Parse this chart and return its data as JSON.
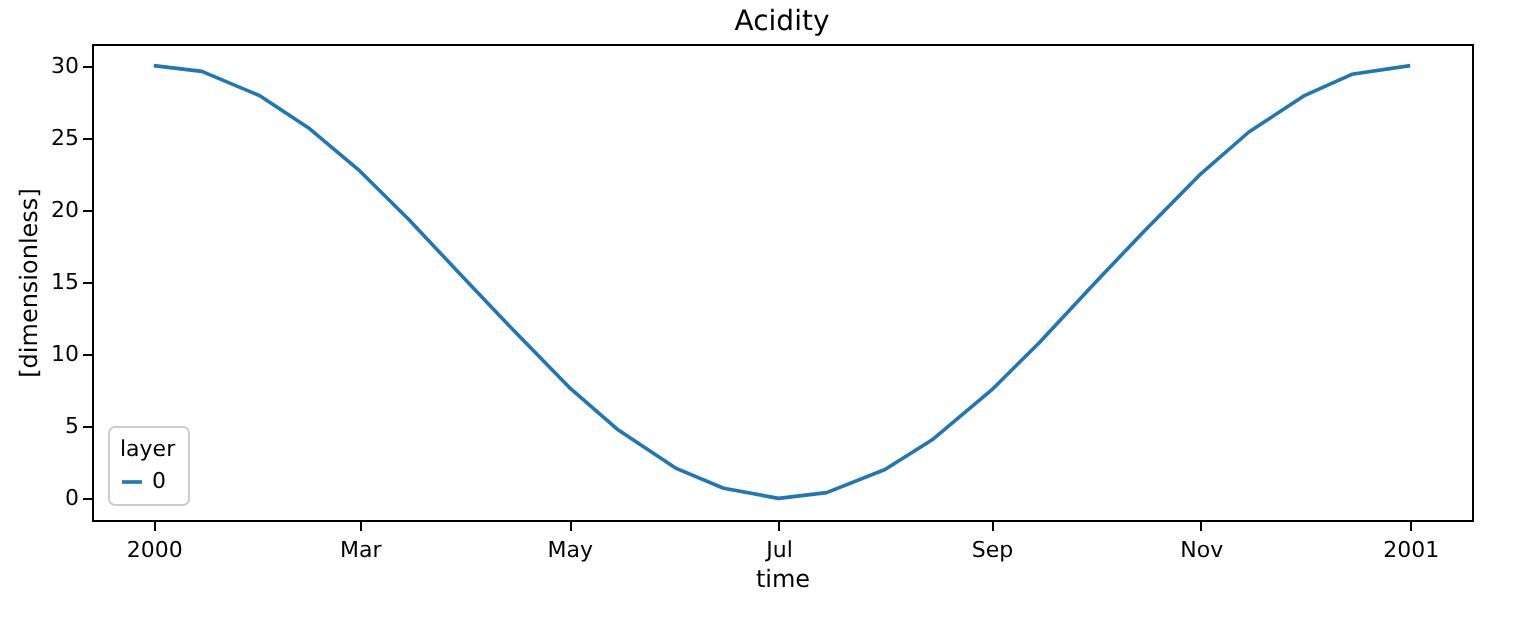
{
  "chart_data": {
    "type": "line",
    "title": "Acidity",
    "xlabel": "time",
    "ylabel": "[dimensionless]",
    "legend_title": "layer",
    "x": [
      "2000-01-01",
      "2000-01-15",
      "2000-02-01",
      "2000-02-15",
      "2000-03-01",
      "2000-03-15",
      "2000-04-01",
      "2000-04-15",
      "2000-05-01",
      "2000-05-15",
      "2000-06-01",
      "2000-06-15",
      "2000-07-01",
      "2000-07-15",
      "2000-08-01",
      "2000-08-15",
      "2000-09-01",
      "2000-09-15",
      "2000-10-01",
      "2000-10-15",
      "2000-11-01",
      "2000-11-15",
      "2000-12-01",
      "2000-12-15",
      "2001-01-01"
    ],
    "series": [
      {
        "name": "0",
        "color": "#1f77b4",
        "values": [
          30,
          29.6,
          27.9,
          25.7,
          22.7,
          19.4,
          15.1,
          11.6,
          7.7,
          4.8,
          2.1,
          0.7,
          0,
          0.4,
          2,
          4.1,
          7.5,
          10.8,
          14.9,
          18.4,
          22.5,
          25.4,
          27.9,
          29.4,
          30
        ]
      }
    ],
    "xlim": [
      "1999-12-14",
      "2001-01-19"
    ],
    "xticks": [
      {
        "value": "2000-01-01",
        "label": "2000"
      },
      {
        "value": "2000-03-01",
        "label": "Mar"
      },
      {
        "value": "2000-05-01",
        "label": "May"
      },
      {
        "value": "2000-07-01",
        "label": "Jul"
      },
      {
        "value": "2000-09-01",
        "label": "Sep"
      },
      {
        "value": "2000-11-01",
        "label": "Nov"
      },
      {
        "value": "2001-01-01",
        "label": "2001"
      }
    ],
    "ylim": [
      -1.5,
      31.5
    ],
    "yticks": [
      0,
      5,
      10,
      15,
      20,
      25,
      30
    ],
    "grid": false,
    "legend": "bottom left",
    "marker": "none",
    "line_style": "solid"
  }
}
